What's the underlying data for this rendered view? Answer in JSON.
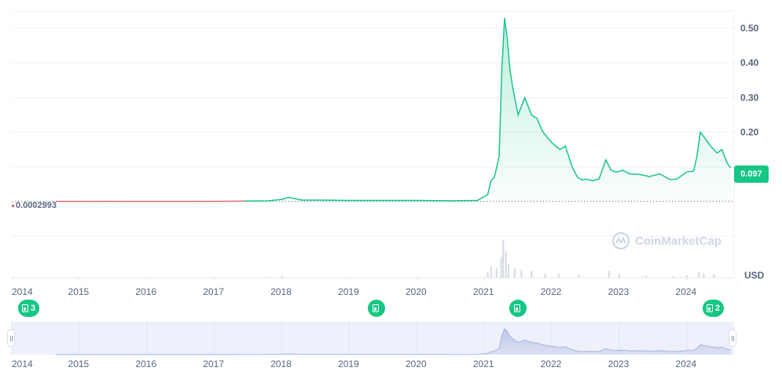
{
  "chart_data": {
    "type": "area",
    "currency": "USD",
    "ylim": [
      -0.22,
      0.55
    ],
    "y_ticks": [
      0.5,
      0.4,
      0.3,
      0.2
    ],
    "y_tick_labels": [
      "0.50",
      "0.40",
      "0.30",
      "0.20"
    ],
    "x_range": [
      2014.0,
      2024.7
    ],
    "x_ticks": [
      2014,
      2015,
      2016,
      2017,
      2018,
      2019,
      2020,
      2021,
      2022,
      2023,
      2024
    ],
    "x_tick_labels": [
      "2014",
      "2015",
      "2016",
      "2017",
      "2018",
      "2019",
      "2020",
      "2021",
      "2022",
      "2023",
      "2024"
    ],
    "grid": true,
    "series": [
      {
        "color": "#16c784",
        "x": [
          2014.65,
          2015.0,
          2015.5,
          2016.0,
          2016.5,
          2017.0,
          2017.45,
          2017.8,
          2018.0,
          2018.1,
          2018.3,
          2018.6,
          2019.0,
          2019.5,
          2020.0,
          2020.5,
          2020.9,
          2021.05,
          2021.1,
          2021.15,
          2021.22,
          2021.26,
          2021.3,
          2021.34,
          2021.38,
          2021.42,
          2021.5,
          2021.6,
          2021.7,
          2021.78,
          2021.87,
          2022.0,
          2022.12,
          2022.2,
          2022.3,
          2022.38,
          2022.45,
          2022.5,
          2022.6,
          2022.7,
          2022.8,
          2022.88,
          2022.95,
          2023.05,
          2023.15,
          2023.3,
          2023.45,
          2023.6,
          2023.75,
          2023.85,
          2024.0,
          2024.1,
          2024.15,
          2024.2,
          2024.28,
          2024.35,
          2024.45,
          2024.52,
          2024.6,
          2024.65
        ],
        "values": [
          0.0003,
          0.0003,
          0.0003,
          0.0003,
          0.0003,
          0.0003,
          0.0016,
          0.002,
          0.006,
          0.012,
          0.004,
          0.004,
          0.003,
          0.003,
          0.003,
          0.002,
          0.003,
          0.02,
          0.06,
          0.07,
          0.13,
          0.38,
          0.53,
          0.47,
          0.38,
          0.33,
          0.25,
          0.3,
          0.25,
          0.24,
          0.2,
          0.17,
          0.15,
          0.16,
          0.1,
          0.07,
          0.062,
          0.065,
          0.06,
          0.065,
          0.12,
          0.09,
          0.085,
          0.09,
          0.08,
          0.078,
          0.072,
          0.08,
          0.063,
          0.065,
          0.085,
          0.088,
          0.13,
          0.2,
          0.18,
          0.16,
          0.14,
          0.15,
          0.11,
          0.097
        ]
      }
    ],
    "start_price_label": "0.0002993",
    "current_price_label": "0.097",
    "watermark": "CoinMarketCap",
    "volume": {
      "x": [
        2017.8,
        2018.0,
        2021.05,
        2021.1,
        2021.18,
        2021.25,
        2021.28,
        2021.32,
        2021.36,
        2021.45,
        2021.55,
        2021.7,
        2021.9,
        2022.1,
        2022.4,
        2022.85,
        2023.0,
        2023.4,
        2023.8,
        2024.0,
        2024.18,
        2024.25,
        2024.4
      ],
      "values": [
        0.02,
        0.05,
        0.15,
        0.3,
        0.25,
        0.55,
        1.0,
        0.7,
        0.35,
        0.25,
        0.2,
        0.18,
        0.12,
        0.1,
        0.08,
        0.18,
        0.1,
        0.06,
        0.05,
        0.06,
        0.16,
        0.12,
        0.08
      ]
    }
  },
  "events": [
    {
      "count": "3"
    },
    {
      "count": ""
    },
    {
      "count": ""
    },
    {
      "count": "2"
    }
  ],
  "navigator": {
    "x_tick_labels": [
      "2014",
      "2015",
      "2016",
      "2017",
      "2018",
      "2019",
      "2020",
      "2021",
      "2022",
      "2023",
      "2024"
    ]
  }
}
